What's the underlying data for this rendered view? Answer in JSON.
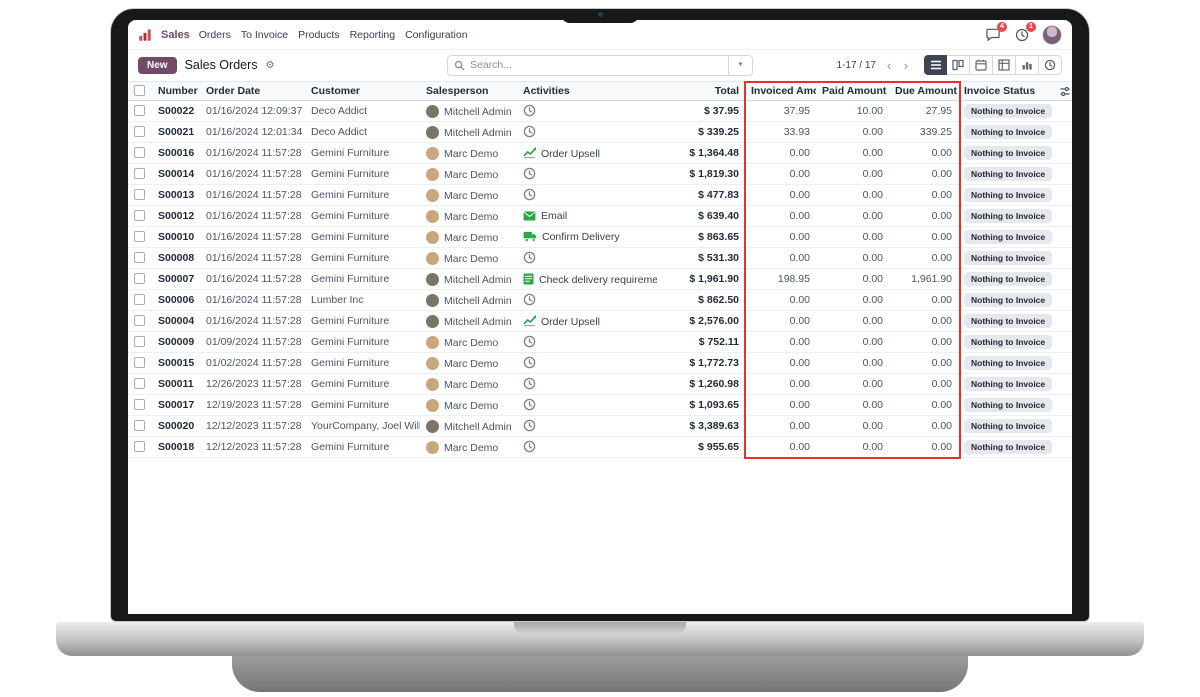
{
  "nav": {
    "app_name": "Sales",
    "menus": [
      "Orders",
      "To Invoice",
      "Products",
      "Reporting",
      "Configuration"
    ],
    "systray": {
      "messages_badge": "4",
      "activities_badge": "1"
    }
  },
  "control_panel": {
    "new_button": "New",
    "breadcrumb": "Sales Orders",
    "search_placeholder": "Search...",
    "pager": "1-17 / 17"
  },
  "icons": {
    "gear": "⚙",
    "caret_down": "▼",
    "chevron_left": "‹",
    "chevron_right": "›"
  },
  "colors": {
    "accent": "#714B67",
    "annotation": "#E8312A",
    "badge_red": "#E5484D",
    "success": "#28A745",
    "status_badge_bg": "#E6E8EE"
  },
  "avatars": {
    "Mitchell Admin": "#7d7468",
    "Marc Demo": "#c8a77e"
  },
  "table": {
    "headers": [
      "Number",
      "Order Date",
      "Customer",
      "Salesperson",
      "Activities",
      "Total",
      "Invoiced Amount",
      "Paid Amount",
      "Due Amount",
      "Invoice Status"
    ],
    "rows": [
      {
        "number": "S00022",
        "order_date": "01/16/2024 12:09:37",
        "customer": "Deco Addict",
        "salesperson": "Mitchell Admin",
        "activity_type": "clock",
        "activity_label": "",
        "total": "$ 37.95",
        "invoiced": "37.95",
        "paid": "10.00",
        "due": "27.95",
        "status": "Nothing to Invoice"
      },
      {
        "number": "S00021",
        "order_date": "01/16/2024 12:01:34",
        "customer": "Deco Addict",
        "salesperson": "Mitchell Admin",
        "activity_type": "clock",
        "activity_label": "",
        "total": "$ 339.25",
        "invoiced": "33.93",
        "paid": "0.00",
        "due": "339.25",
        "status": "Nothing to Invoice"
      },
      {
        "number": "S00016",
        "order_date": "01/16/2024 11:57:28",
        "customer": "Gemini Furniture",
        "salesperson": "Marc Demo",
        "activity_type": "upsell",
        "activity_label": "Order Upsell",
        "total": "$ 1,364.48",
        "invoiced": "0.00",
        "paid": "0.00",
        "due": "0.00",
        "status": "Nothing to Invoice"
      },
      {
        "number": "S00014",
        "order_date": "01/16/2024 11:57:28",
        "customer": "Gemini Furniture",
        "salesperson": "Marc Demo",
        "activity_type": "clock",
        "activity_label": "",
        "total": "$ 1,819.30",
        "invoiced": "0.00",
        "paid": "0.00",
        "due": "0.00",
        "status": "Nothing to Invoice"
      },
      {
        "number": "S00013",
        "order_date": "01/16/2024 11:57:28",
        "customer": "Gemini Furniture",
        "salesperson": "Marc Demo",
        "activity_type": "clock",
        "activity_label": "",
        "total": "$ 477.83",
        "invoiced": "0.00",
        "paid": "0.00",
        "due": "0.00",
        "status": "Nothing to Invoice"
      },
      {
        "number": "S00012",
        "order_date": "01/16/2024 11:57:28",
        "customer": "Gemini Furniture",
        "salesperson": "Marc Demo",
        "activity_type": "email",
        "activity_label": "Email",
        "total": "$ 639.40",
        "invoiced": "0.00",
        "paid": "0.00",
        "due": "0.00",
        "status": "Nothing to Invoice"
      },
      {
        "number": "S00010",
        "order_date": "01/16/2024 11:57:28",
        "customer": "Gemini Furniture",
        "salesperson": "Marc Demo",
        "activity_type": "delivery",
        "activity_label": "Confirm Delivery",
        "total": "$ 863.65",
        "invoiced": "0.00",
        "paid": "0.00",
        "due": "0.00",
        "status": "Nothing to Invoice"
      },
      {
        "number": "S00008",
        "order_date": "01/16/2024 11:57:28",
        "customer": "Gemini Furniture",
        "salesperson": "Marc Demo",
        "activity_type": "clock",
        "activity_label": "",
        "total": "$ 531.30",
        "invoiced": "0.00",
        "paid": "0.00",
        "due": "0.00",
        "status": "Nothing to Invoice"
      },
      {
        "number": "S00007",
        "order_date": "01/16/2024 11:57:28",
        "customer": "Gemini Furniture",
        "salesperson": "Mitchell Admin",
        "activity_type": "checklist",
        "activity_label": "Check delivery requirements",
        "total": "$ 1,961.90",
        "invoiced": "198.95",
        "paid": "0.00",
        "due": "1,961.90",
        "status": "Nothing to Invoice"
      },
      {
        "number": "S00006",
        "order_date": "01/16/2024 11:57:28",
        "customer": "Lumber Inc",
        "salesperson": "Mitchell Admin",
        "activity_type": "clock",
        "activity_label": "",
        "total": "$ 862.50",
        "invoiced": "0.00",
        "paid": "0.00",
        "due": "0.00",
        "status": "Nothing to Invoice"
      },
      {
        "number": "S00004",
        "order_date": "01/16/2024 11:57:28",
        "customer": "Gemini Furniture",
        "salesperson": "Mitchell Admin",
        "activity_type": "upsell",
        "activity_label": "Order Upsell",
        "total": "$ 2,576.00",
        "invoiced": "0.00",
        "paid": "0.00",
        "due": "0.00",
        "status": "Nothing to Invoice"
      },
      {
        "number": "S00009",
        "order_date": "01/09/2024 11:57:28",
        "customer": "Gemini Furniture",
        "salesperson": "Marc Demo",
        "activity_type": "clock",
        "activity_label": "",
        "total": "$ 752.11",
        "invoiced": "0.00",
        "paid": "0.00",
        "due": "0.00",
        "status": "Nothing to Invoice"
      },
      {
        "number": "S00015",
        "order_date": "01/02/2024 11:57:28",
        "customer": "Gemini Furniture",
        "salesperson": "Marc Demo",
        "activity_type": "clock",
        "activity_label": "",
        "total": "$ 1,772.73",
        "invoiced": "0.00",
        "paid": "0.00",
        "due": "0.00",
        "status": "Nothing to Invoice"
      },
      {
        "number": "S00011",
        "order_date": "12/26/2023 11:57:28",
        "customer": "Gemini Furniture",
        "salesperson": "Marc Demo",
        "activity_type": "clock",
        "activity_label": "",
        "total": "$ 1,260.98",
        "invoiced": "0.00",
        "paid": "0.00",
        "due": "0.00",
        "status": "Nothing to Invoice"
      },
      {
        "number": "S00017",
        "order_date": "12/19/2023 11:57:28",
        "customer": "Gemini Furniture",
        "salesperson": "Marc Demo",
        "activity_type": "clock",
        "activity_label": "",
        "total": "$ 1,093.65",
        "invoiced": "0.00",
        "paid": "0.00",
        "due": "0.00",
        "status": "Nothing to Invoice"
      },
      {
        "number": "S00020",
        "order_date": "12/12/2023 11:57:28",
        "customer": "YourCompany, Joel Willis",
        "salesperson": "Mitchell Admin",
        "activity_type": "clock",
        "activity_label": "",
        "total": "$ 3,389.63",
        "invoiced": "0.00",
        "paid": "0.00",
        "due": "0.00",
        "status": "Nothing to Invoice"
      },
      {
        "number": "S00018",
        "order_date": "12/12/2023 11:57:28",
        "customer": "Gemini Furniture",
        "salesperson": "Marc Demo",
        "activity_type": "clock",
        "activity_label": "",
        "total": "$ 955.65",
        "invoiced": "0.00",
        "paid": "0.00",
        "due": "0.00",
        "status": "Nothing to Invoice"
      }
    ]
  }
}
